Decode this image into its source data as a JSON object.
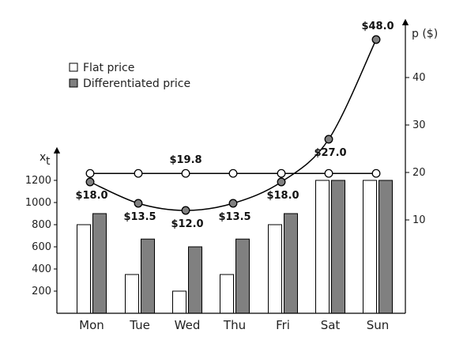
{
  "chart_data": {
    "type": "bar+line",
    "categories": [
      "Mon",
      "Tue",
      "Wed",
      "Thu",
      "Fri",
      "Sat",
      "Sun"
    ],
    "left_axis": {
      "label": "x",
      "label_subscript": "t",
      "ticks": [
        200,
        400,
        600,
        800,
        1000,
        1200
      ],
      "range": [
        0,
        1350
      ]
    },
    "right_axis": {
      "label": "p ($)",
      "ticks": [
        10,
        20,
        30,
        40
      ],
      "range": [
        -18,
        55
      ]
    },
    "bar_series": [
      {
        "name": "Flat price",
        "fill": "#ffffff",
        "values": [
          800,
          350,
          200,
          350,
          800,
          1200,
          1200
        ]
      },
      {
        "name": "Differentiated price",
        "fill": "#808080",
        "values": [
          900,
          670,
          600,
          670,
          900,
          1200,
          1200
        ]
      }
    ],
    "line_series": [
      {
        "name": "Flat price",
        "marker_fill": "#ffffff",
        "values": [
          19.8,
          19.8,
          19.8,
          19.8,
          19.8,
          19.8,
          19.8
        ],
        "labels": [
          {
            "index": 2,
            "text": "$19.8",
            "position": "above"
          }
        ]
      },
      {
        "name": "Differentiated price",
        "marker_fill": "#808080",
        "values": [
          18.0,
          13.5,
          12.0,
          13.5,
          18.0,
          27.0,
          48.0
        ],
        "labels": [
          {
            "index": 0,
            "text": "$18.0",
            "position": "below"
          },
          {
            "index": 1,
            "text": "$13.5",
            "position": "below"
          },
          {
            "index": 2,
            "text": "$12.0",
            "position": "below"
          },
          {
            "index": 3,
            "text": "$13.5",
            "position": "below"
          },
          {
            "index": 4,
            "text": "$18.0",
            "position": "below"
          },
          {
            "index": 5,
            "text": "$27.0",
            "position": "below"
          },
          {
            "index": 6,
            "text": "$48.0",
            "position": "above"
          }
        ]
      }
    ],
    "legend": {
      "placement": "top-left"
    },
    "grid": false
  }
}
